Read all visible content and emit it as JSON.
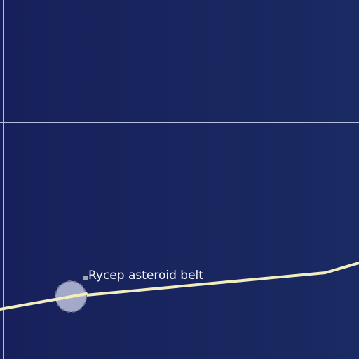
{
  "map": {
    "background_colors": [
      "#17205a",
      "#1a2a62"
    ],
    "grid_color": "#b8bde0",
    "route_color": "#f2edbf",
    "marker_color": "#b0b5d3",
    "label_marker_color": "#a6a6a6",
    "feature": {
      "label": "Rycep asteroid belt",
      "icon": "asteroid-belt-marker-icon"
    }
  }
}
